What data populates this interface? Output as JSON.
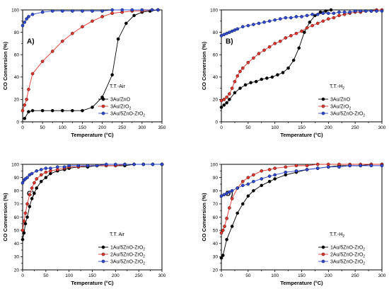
{
  "chart_data": [
    {
      "type": "line",
      "panel_label": "A)",
      "annotation": "T.T.-Air",
      "xlabel": "Temperature (°C)",
      "ylabel": "CO  Conversion (%)",
      "xlim": [
        0,
        350
      ],
      "ylim": [
        0,
        100
      ],
      "xticks": [
        "0",
        "50",
        "100",
        "150",
        "200",
        "250",
        "300",
        "350"
      ],
      "yticks": [
        "0",
        "20",
        "40",
        "60",
        "80",
        "100"
      ],
      "legend_position": "bottom-right",
      "series": [
        {
          "name": "3Au/ZnO",
          "color": "#000000",
          "x": [
            5,
            15,
            25,
            50,
            75,
            100,
            125,
            150,
            175,
            200,
            225,
            240,
            260,
            280,
            300,
            320,
            340
          ],
          "y": [
            3,
            9,
            10,
            10,
            10,
            10,
            10,
            10,
            13,
            22,
            42,
            74,
            88,
            95,
            98,
            99,
            100
          ]
        },
        {
          "name": "3Au/ZrO2",
          "color": "#e6332a",
          "x": [
            0,
            5,
            10,
            15,
            25,
            50,
            75,
            100,
            125,
            150,
            175,
            200,
            225,
            250,
            275,
            300,
            325,
            340
          ],
          "y": [
            10,
            15,
            20,
            29,
            43,
            54,
            63,
            72,
            79,
            85,
            90,
            94,
            97,
            98,
            99,
            99,
            100,
            100
          ]
        },
        {
          "name": "3Au/5ZnO-ZrO2",
          "color": "#2e49d6",
          "x": [
            0,
            5,
            10,
            15,
            25,
            50,
            75,
            100,
            125,
            150,
            175,
            200,
            225,
            250,
            275,
            300,
            325,
            340
          ],
          "y": [
            86,
            89,
            92,
            94,
            96,
            98,
            99,
            99,
            99,
            99,
            99,
            99,
            100,
            100,
            100,
            100,
            100,
            100
          ]
        }
      ]
    },
    {
      "type": "line",
      "panel_label": "B)",
      "annotation": "T.T.-H2",
      "xlabel": "Temperature (°C)",
      "ylabel": "CO  Conversion (%)",
      "xlim": [
        0,
        300
      ],
      "ylim": [
        0,
        100
      ],
      "xticks": [
        "0",
        "50",
        "100",
        "150",
        "200",
        "250",
        "300"
      ],
      "yticks": [
        "0",
        "20",
        "40",
        "60",
        "80",
        "100"
      ],
      "legend_position": "bottom-right",
      "series": [
        {
          "name": "3Au/ZnO",
          "color": "#000000",
          "x": [
            0,
            5,
            10,
            15,
            25,
            35,
            45,
            55,
            65,
            75,
            85,
            95,
            105,
            115,
            125,
            135,
            145,
            155,
            165,
            175,
            185,
            195,
            205
          ],
          "y": [
            13,
            15,
            17,
            20,
            26,
            30,
            33,
            35,
            36,
            38,
            39,
            40,
            42,
            44,
            48,
            55,
            66,
            80,
            89,
            95,
            98,
            99,
            100
          ]
        },
        {
          "name": "3Au/ZrO2",
          "color": "#e6332a",
          "x": [
            0,
            5,
            10,
            15,
            20,
            25,
            30,
            35,
            40,
            50,
            60,
            70,
            80,
            90,
            100,
            110,
            120,
            130,
            140,
            150,
            160,
            170,
            180,
            190,
            200,
            210,
            220,
            230,
            240,
            250,
            260,
            270,
            280,
            290,
            300
          ],
          "y": [
            19,
            20,
            22,
            25,
            30,
            36,
            41,
            45,
            48,
            53,
            57,
            61,
            64,
            67,
            70,
            72,
            75,
            77,
            79,
            81,
            84,
            86,
            88,
            90,
            92,
            93,
            95,
            96,
            97,
            98,
            98,
            99,
            99,
            100,
            100
          ]
        },
        {
          "name": "3Au/5ZnO-ZrO2",
          "color": "#2e49d6",
          "x": [
            0,
            5,
            10,
            15,
            20,
            25,
            30,
            40,
            50,
            60,
            70,
            80,
            90,
            100,
            110,
            120,
            130,
            140,
            150,
            160,
            170,
            180,
            190,
            200,
            210,
            220,
            230,
            240,
            250,
            260,
            270,
            280,
            290,
            300
          ],
          "y": [
            77,
            78,
            79,
            80,
            81,
            82,
            83,
            85,
            86,
            87,
            88,
            89,
            90,
            91,
            92,
            93,
            93,
            94,
            94,
            95,
            96,
            96,
            97,
            97,
            97,
            98,
            98,
            98,
            99,
            99,
            99,
            99,
            99,
            99
          ]
        }
      ]
    },
    {
      "type": "line",
      "panel_label": "C)",
      "annotation": "T.T. Air",
      "xlabel": "Temperature (°C)",
      "ylabel": "CO  Conversion (%)",
      "xlim": [
        0,
        300
      ],
      "ylim": [
        20,
        100
      ],
      "xticks": [
        "0",
        "50",
        "100",
        "150",
        "200",
        "250",
        "300"
      ],
      "yticks": [
        "20",
        "30",
        "40",
        "50",
        "60",
        "70",
        "80",
        "90",
        "100"
      ],
      "legend_position": "bottom-right",
      "series": [
        {
          "name": "1Au/5ZnO-ZrO2",
          "color": "#000000",
          "x": [
            0,
            3,
            6,
            10,
            15,
            20,
            25,
            30,
            40,
            50,
            60,
            75,
            90,
            100,
            120,
            140,
            160,
            180,
            200,
            220,
            240,
            260,
            280,
            300
          ],
          "y": [
            43,
            48,
            55,
            60,
            68,
            74,
            78,
            82,
            87,
            90,
            93,
            95,
            96,
            97,
            98,
            98,
            99,
            99,
            99,
            99,
            100,
            100,
            100,
            100
          ]
        },
        {
          "name": "2Au/5ZnO-ZrO2",
          "color": "#e6332a",
          "x": [
            0,
            3,
            6,
            10,
            15,
            20,
            25,
            30,
            40,
            50,
            60,
            75,
            90,
            100,
            120,
            140,
            160,
            180,
            200,
            220,
            240,
            260,
            280,
            300
          ],
          "y": [
            50,
            57,
            63,
            70,
            77,
            82,
            86,
            89,
            92,
            94,
            95,
            96,
            97,
            98,
            98,
            99,
            99,
            99,
            99,
            100,
            100,
            100,
            100,
            100
          ]
        },
        {
          "name": "3Au/5ZnO-ZrO2",
          "color": "#2e49d6",
          "x": [
            0,
            3,
            6,
            10,
            15,
            20,
            30,
            40,
            50,
            60,
            75,
            90,
            100,
            120,
            140,
            160,
            180,
            200,
            220,
            240,
            260,
            280,
            300
          ],
          "y": [
            86,
            88,
            89,
            90,
            92,
            93,
            95,
            96,
            97,
            97,
            98,
            98,
            99,
            99,
            99,
            99,
            100,
            100,
            100,
            100,
            100,
            100,
            100
          ]
        }
      ]
    },
    {
      "type": "line",
      "panel_label": "D)",
      "annotation": "T.T.-H2",
      "xlabel": "Temperature (°C)",
      "ylabel": "CO  Conversion (%)",
      "xlim": [
        0,
        300
      ],
      "ylim": [
        20,
        100
      ],
      "xticks": [
        "0",
        "50",
        "100",
        "150",
        "200",
        "250",
        "300"
      ],
      "yticks": [
        "20",
        "30",
        "40",
        "50",
        "60",
        "70",
        "80",
        "90",
        "100"
      ],
      "legend_position": "bottom-right",
      "series": [
        {
          "name": "1Au/5ZnO-ZrO2",
          "color": "#000000",
          "x": [
            0,
            3,
            10,
            20,
            30,
            40,
            50,
            60,
            75,
            90,
            100,
            120,
            140,
            160,
            180,
            200,
            220,
            240,
            260,
            280,
            300
          ],
          "y": [
            29,
            31,
            43,
            53,
            63,
            70,
            76,
            80,
            84,
            87,
            89,
            92,
            94,
            96,
            97,
            98,
            99,
            99,
            99,
            100,
            100
          ]
        },
        {
          "name": "2Au/5ZnO-ZrO2",
          "color": "#e6332a",
          "x": [
            0,
            3,
            6,
            10,
            15,
            20,
            30,
            40,
            50,
            60,
            75,
            90,
            100,
            120,
            140,
            160,
            180,
            200,
            220,
            240,
            260,
            280,
            300
          ],
          "y": [
            48,
            50,
            53,
            59,
            67,
            74,
            82,
            87,
            90,
            92,
            95,
            96,
            97,
            98,
            99,
            99,
            100,
            100,
            100,
            100,
            100,
            100,
            100
          ]
        },
        {
          "name": "3Au/5ZnO-ZrO2",
          "color": "#2e49d6",
          "x": [
            0,
            5,
            10,
            15,
            20,
            30,
            40,
            50,
            60,
            75,
            90,
            100,
            120,
            140,
            160,
            180,
            200,
            220,
            240,
            260,
            280,
            300
          ],
          "y": [
            76,
            77,
            78,
            79,
            80,
            82,
            84,
            85,
            87,
            89,
            91,
            92,
            94,
            95,
            96,
            97,
            98,
            98,
            99,
            99,
            99,
            99
          ]
        }
      ]
    }
  ]
}
